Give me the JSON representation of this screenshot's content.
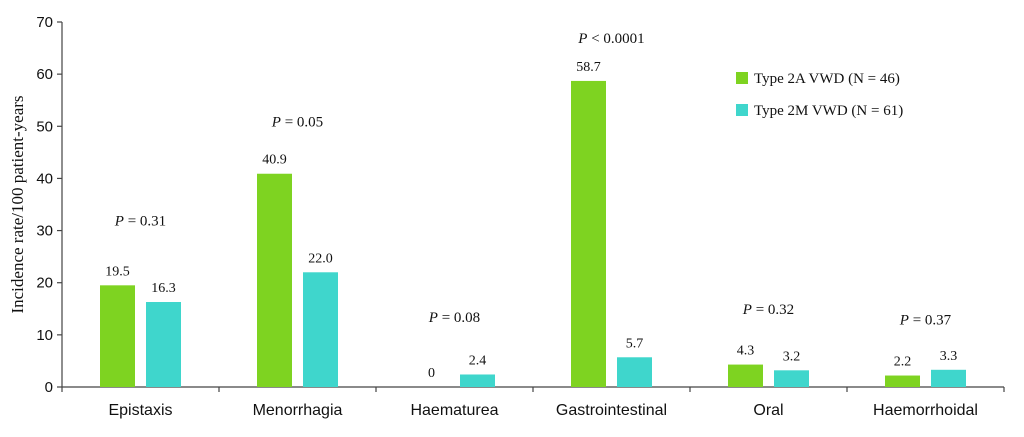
{
  "chart_data": {
    "type": "bar",
    "categories": [
      "Epistaxis",
      "Menorrhagia",
      "Haematurea",
      "Gastrointestinal",
      "Oral",
      "Haemorrhoidal"
    ],
    "series": [
      {
        "name": "Type 2A VWD (N = 46)",
        "color": "#7ed321",
        "values": [
          19.5,
          40.9,
          0,
          58.7,
          4.3,
          2.2
        ],
        "labels": [
          "19.5",
          "40.9",
          "0",
          "58.7",
          "4.3",
          "2.2"
        ]
      },
      {
        "name": "Type 2M VWD (N = 61)",
        "color": "#3fd6cc",
        "values": [
          16.3,
          22.0,
          2.4,
          5.7,
          3.2,
          3.3
        ],
        "labels": [
          "16.3",
          "22.0",
          "2.4",
          "5.7",
          "3.2",
          "3.3"
        ]
      }
    ],
    "p_values": [
      {
        "prefix": "P",
        "text": " = 0.31",
        "y": 31
      },
      {
        "prefix": "P",
        "text": " = 0.05",
        "y": 50
      },
      {
        "prefix": "P",
        "text": " = 0.08",
        "y": 12.5
      },
      {
        "prefix": "P",
        "text": " < 0.0001",
        "y": 66
      },
      {
        "prefix": "P",
        "text": " = 0.32",
        "y": 14
      },
      {
        "prefix": "P",
        "text": " = 0.37",
        "y": 12
      }
    ],
    "ylabel": "Incidence rate/100 patient-years",
    "ylim": [
      0,
      70
    ],
    "yticks": [
      0,
      10,
      20,
      30,
      40,
      50,
      60,
      70
    ],
    "legend_position": "top-right",
    "grid": false
  }
}
